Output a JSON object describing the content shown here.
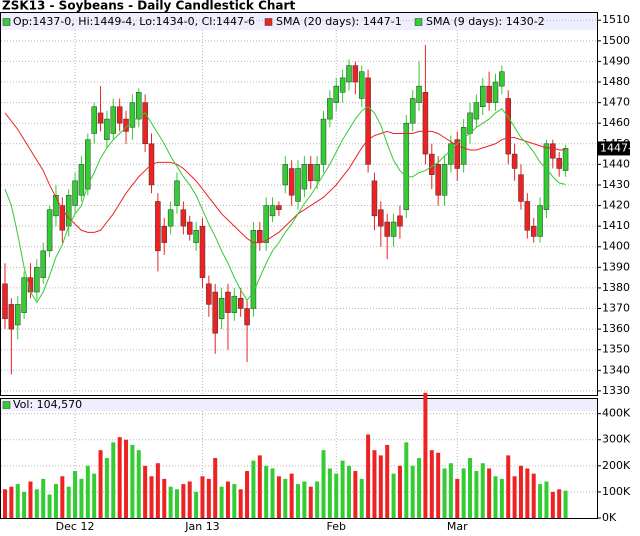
{
  "chart_data": {
    "type": "candlestick",
    "title": "ZSK13 - Soybeans - Daily Candlestick Chart",
    "ohlc_label": "Op:1437-0, Hi:1449-4, Lo:1434-0, Cl:1447-6",
    "last_label": "1447-6",
    "up_color": "#33cc33",
    "down_color": "#ee2222",
    "grid": true,
    "categories": [
      null,
      null,
      null,
      null,
      null,
      null,
      null,
      null,
      null,
      null,
      null,
      "Dec 12",
      null,
      null,
      null,
      null,
      null,
      null,
      null,
      null,
      null,
      null,
      null,
      null,
      null,
      null,
      null,
      null,
      null,
      null,
      null,
      "Jan 13",
      null,
      null,
      null,
      null,
      null,
      null,
      null,
      null,
      null,
      null,
      null,
      null,
      null,
      null,
      null,
      null,
      null,
      null,
      null,
      null,
      "Feb",
      null,
      null,
      null,
      null,
      null,
      null,
      null,
      null,
      null,
      null,
      null,
      null,
      null,
      null,
      null,
      null,
      null,
      null,
      "Mar",
      null,
      null,
      null,
      null,
      null,
      null,
      null,
      null,
      null,
      null,
      null,
      null,
      null,
      null,
      null,
      null,
      null
    ],
    "open": [
      1382,
      1372,
      1362,
      1368,
      1385,
      1378,
      1385,
      1398,
      1415,
      1420,
      1410,
      1420,
      1425,
      1428,
      1455,
      1465,
      1452,
      1455,
      1468,
      1462,
      1458,
      1462,
      1470,
      1450,
      1422,
      1410,
      1410,
      1420,
      1418,
      1412,
      1402,
      1410,
      1382,
      1378,
      1365,
      1378,
      1368,
      1375,
      1370,
      1370,
      1408,
      1402,
      1415,
      1420,
      1430,
      1438,
      1422,
      1428,
      1440,
      1432,
      1440,
      1462,
      1470,
      1475,
      1480,
      1488,
      1472,
      1482,
      1432,
      1418,
      1412,
      1405,
      1415,
      1418,
      1460,
      1470,
      1475,
      1445,
      1440,
      1425,
      1440,
      1452,
      1440,
      1455,
      1462,
      1468,
      1478,
      1470,
      1478,
      1472,
      1445,
      1435,
      1422,
      1410,
      1405,
      1418,
      1450,
      1443,
      1437
    ],
    "high": [
      1392,
      1375,
      1376,
      1388,
      1392,
      1394,
      1402,
      1420,
      1430,
      1424,
      1428,
      1436,
      1444,
      1455,
      1470,
      1478,
      1466,
      1472,
      1472,
      1466,
      1474,
      1477,
      1474,
      1455,
      1426,
      1414,
      1422,
      1436,
      1422,
      1415,
      1412,
      1414,
      1386,
      1382,
      1380,
      1382,
      1380,
      1380,
      1374,
      1412,
      1412,
      1424,
      1424,
      1422,
      1444,
      1442,
      1442,
      1444,
      1444,
      1444,
      1466,
      1476,
      1482,
      1486,
      1491,
      1490,
      1488,
      1486,
      1436,
      1422,
      1416,
      1416,
      1420,
      1464,
      1476,
      1490,
      1498,
      1450,
      1444,
      1444,
      1454,
      1456,
      1462,
      1470,
      1474,
      1482,
      1485,
      1484,
      1488,
      1476,
      1450,
      1440,
      1426,
      1414,
      1424,
      1452,
      1452,
      1446,
      1449.5
    ],
    "low": [
      1360,
      1338,
      1355,
      1365,
      1375,
      1374,
      1382,
      1395,
      1410,
      1402,
      1405,
      1416,
      1422,
      1425,
      1450,
      1456,
      1448,
      1452,
      1456,
      1450,
      1452,
      1458,
      1446,
      1426,
      1388,
      1396,
      1406,
      1416,
      1406,
      1403,
      1398,
      1380,
      1366,
      1348,
      1360,
      1350,
      1364,
      1366,
      1344,
      1366,
      1398,
      1398,
      1412,
      1415,
      1426,
      1420,
      1418,
      1424,
      1428,
      1428,
      1436,
      1458,
      1466,
      1470,
      1476,
      1474,
      1468,
      1436,
      1408,
      1400,
      1394,
      1400,
      1404,
      1414,
      1456,
      1466,
      1440,
      1428,
      1420,
      1420,
      1436,
      1432,
      1436,
      1450,
      1458,
      1464,
      1466,
      1466,
      1474,
      1440,
      1432,
      1418,
      1404,
      1402,
      1402,
      1414,
      1438,
      1434,
      1434
    ],
    "close": [
      1365,
      1360,
      1372,
      1385,
      1378,
      1390,
      1398,
      1418,
      1425,
      1408,
      1425,
      1432,
      1440,
      1452,
      1468,
      1460,
      1462,
      1468,
      1460,
      1456,
      1470,
      1475,
      1450,
      1430,
      1398,
      1402,
      1418,
      1432,
      1410,
      1406,
      1408,
      1385,
      1372,
      1358,
      1375,
      1368,
      1376,
      1370,
      1362,
      1408,
      1402,
      1420,
      1420,
      1418,
      1440,
      1425,
      1438,
      1440,
      1432,
      1440,
      1462,
      1472,
      1478,
      1482,
      1488,
      1480,
      1485,
      1440,
      1415,
      1410,
      1405,
      1412,
      1410,
      1460,
      1472,
      1478,
      1445,
      1435,
      1425,
      1440,
      1450,
      1438,
      1458,
      1465,
      1470,
      1478,
      1470,
      1480,
      1485,
      1445,
      1438,
      1422,
      1408,
      1405,
      1420,
      1450,
      1443,
      1438,
      1447.75
    ],
    "series": [
      {
        "name": "SMA (20 days): 1447-1",
        "color": "#ee2222",
        "values": [
          1465,
          1461,
          1457,
          1452,
          1447,
          1442,
          1437,
          1430,
          1424,
          1418,
          1414,
          1411,
          1408,
          1407,
          1407,
          1408,
          1412,
          1416,
          1421,
          1426,
          1430,
          1434,
          1437,
          1440,
          1441,
          1441,
          1441,
          1440,
          1438,
          1435,
          1432,
          1428,
          1424,
          1420,
          1416,
          1413,
          1410,
          1407,
          1404,
          1402,
          1402,
          1403,
          1405,
          1407,
          1410,
          1413,
          1416,
          1418,
          1420,
          1422,
          1424,
          1427,
          1430,
          1434,
          1438,
          1443,
          1448,
          1452,
          1454,
          1455,
          1456,
          1455,
          1455,
          1455,
          1455,
          1456,
          1456,
          1456,
          1455,
          1453,
          1451,
          1449,
          1448,
          1447,
          1447,
          1448,
          1449,
          1450,
          1452,
          1453,
          1453,
          1452,
          1451,
          1450,
          1449,
          1448,
          1448,
          1447,
          1447.125
        ]
      },
      {
        "name": "SMA (9 days): 1430-2",
        "color": "#33cc33",
        "values": [
          1428,
          1420,
          1406,
          1390,
          1378,
          1373,
          1378,
          1386,
          1395,
          1401,
          1410,
          1416,
          1420,
          1430,
          1436,
          1443,
          1448,
          1452,
          1455,
          1458,
          1461,
          1463,
          1465,
          1460,
          1455,
          1450,
          1444,
          1439,
          1434,
          1430,
          1425,
          1418,
          1411,
          1405,
          1398,
          1392,
          1385,
          1379,
          1374,
          1378,
          1385,
          1392,
          1398,
          1402,
          1407,
          1411,
          1416,
          1421,
          1425,
          1430,
          1435,
          1440,
          1446,
          1452,
          1457,
          1462,
          1466,
          1468,
          1465,
          1459,
          1450,
          1442,
          1437,
          1434,
          1434,
          1436,
          1437,
          1439,
          1441,
          1444,
          1447,
          1450,
          1453,
          1455,
          1458,
          1460,
          1462,
          1465,
          1467,
          1463,
          1458,
          1453,
          1450,
          1446,
          1441,
          1438,
          1434,
          1431,
          1430.25
        ]
      }
    ],
    "ylim": [
      1328,
      1514
    ],
    "yticks": [
      1330,
      1340,
      1350,
      1360,
      1370,
      1380,
      1390,
      1400,
      1410,
      1420,
      1430,
      1440,
      1450,
      1460,
      1470,
      1480,
      1490,
      1500,
      1510
    ],
    "volume": {
      "name": "Vol: 104,570",
      "color_up": "#33cc33",
      "color_down": "#ee2222",
      "values": [
        110000,
        120000,
        130000,
        100000,
        140000,
        110000,
        150000,
        90000,
        130000,
        160000,
        120000,
        180000,
        150000,
        200000,
        170000,
        260000,
        230000,
        290000,
        310000,
        300000,
        280000,
        260000,
        200000,
        160000,
        210000,
        150000,
        120000,
        110000,
        130000,
        140000,
        100000,
        160000,
        150000,
        230000,
        120000,
        140000,
        130000,
        110000,
        180000,
        220000,
        240000,
        200000,
        190000,
        160000,
        150000,
        170000,
        130000,
        140000,
        120000,
        140000,
        260000,
        190000,
        170000,
        220000,
        200000,
        180000,
        150000,
        320000,
        260000,
        240000,
        280000,
        170000,
        200000,
        290000,
        200000,
        230000,
        480000,
        260000,
        250000,
        190000,
        210000,
        150000,
        190000,
        230000,
        180000,
        210000,
        190000,
        160000,
        150000,
        240000,
        160000,
        200000,
        190000,
        170000,
        130000,
        140000,
        100000,
        110000,
        104570
      ],
      "ylim": [
        0,
        460000
      ],
      "yticks": [
        {
          "value": 0,
          "label": "0K"
        },
        {
          "value": 100000,
          "label": "100K"
        },
        {
          "value": 200000,
          "label": "200K"
        },
        {
          "value": 300000,
          "label": "300K"
        },
        {
          "value": 400000,
          "label": "400K"
        }
      ]
    }
  }
}
